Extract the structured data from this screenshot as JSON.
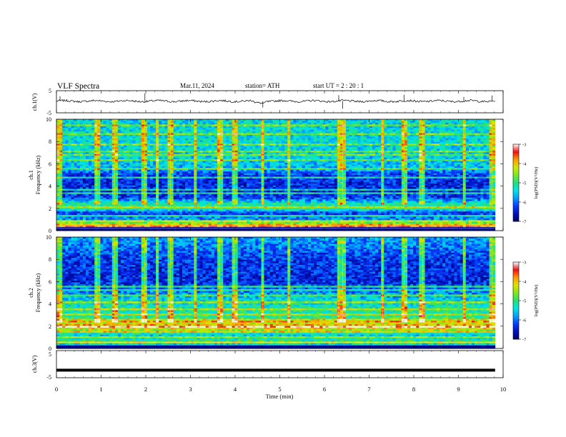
{
  "header": {
    "title": "VLF  Spectra",
    "date": "Mar.11, 2024",
    "station": "station= ATH",
    "start": "start  UT  =   2  : 20 : 1"
  },
  "colors": {
    "colormap": [
      "#000066",
      "#0011bb",
      "#0a3cff",
      "#00a0ff",
      "#00e5e5",
      "#22e07a",
      "#7fe81e",
      "#d8e600",
      "#ff9a00",
      "#ee1111",
      "#ffffff"
    ],
    "trace": "#000000"
  },
  "chart_data": [
    {
      "type": "line",
      "name": "ch1_waveform",
      "ylabel": "ch.1(V)",
      "ylim": [
        -5,
        5
      ],
      "yticks": [
        "5",
        "-5"
      ],
      "xlim": [
        0,
        10
      ],
      "y_baseline": 0.3,
      "spikes": [
        {
          "x": 0.08,
          "y": 2.5
        },
        {
          "x": 1.98,
          "y": 3.8
        },
        {
          "x": 4.62,
          "y": -2.6
        },
        {
          "x": 6.32,
          "y": 3.0
        },
        {
          "x": 6.41,
          "y": -3.2
        },
        {
          "x": 7.78,
          "y": 3.2
        },
        {
          "x": 9.12,
          "y": 2.2
        },
        {
          "x": 9.75,
          "y": 2.8
        }
      ]
    },
    {
      "type": "heatmap",
      "name": "ch1_spectrogram",
      "ylabel": "Frequency (kHz)",
      "channel_label": "ch.1",
      "xlim": [
        0,
        10
      ],
      "ylim": [
        0,
        10
      ],
      "yticks": [
        "0",
        "2",
        "4",
        "6",
        "8",
        "10"
      ],
      "data_extent_min": 9.82,
      "colorbar": {
        "label": "log(PSD)(V²/Hz)",
        "range": [
          -7,
          -3
        ],
        "ticks": [
          "-3",
          "-4",
          "-5",
          "-6",
          "-7"
        ]
      },
      "profile": [
        {
          "f": 0.0,
          "v": -7.0
        },
        {
          "f": 0.5,
          "v": -3.8
        },
        {
          "f": 1.0,
          "v": -5.8
        },
        {
          "f": 1.6,
          "v": -6.3
        },
        {
          "f": 2.0,
          "v": -4.9
        },
        {
          "f": 2.4,
          "v": -5.2
        },
        {
          "f": 3.0,
          "v": -6.3
        },
        {
          "f": 4.0,
          "v": -6.4
        },
        {
          "f": 5.0,
          "v": -6.3
        },
        {
          "f": 5.5,
          "v": -5.7
        },
        {
          "f": 6.5,
          "v": -5.5
        },
        {
          "f": 8.0,
          "v": -5.4
        },
        {
          "f": 10.0,
          "v": -5.5
        }
      ],
      "lines_khz": [
        0.2,
        0.45,
        0.85,
        1.35,
        2.05,
        3.35,
        3.65,
        4.75,
        5.6,
        6.4,
        6.75,
        7.1,
        7.8,
        8.6,
        9.5
      ],
      "bursts_min": [
        0.08,
        0.9,
        1.3,
        1.98,
        2.25,
        2.55,
        3.1,
        3.65,
        3.98,
        4.62,
        5.2,
        6.32,
        6.41,
        7.3,
        7.78,
        8.2,
        9.12,
        9.75
      ]
    },
    {
      "type": "heatmap",
      "name": "ch2_spectrogram",
      "ylabel": "Frequency (kHz)",
      "channel_label": "ch.2",
      "xlim": [
        0,
        10
      ],
      "ylim": [
        0,
        10
      ],
      "yticks": [
        "0",
        "2",
        "4",
        "6",
        "8",
        "10"
      ],
      "data_extent_min": 9.82,
      "colorbar": {
        "label": "log(PSD)(V²/Hz)",
        "range": [
          -7,
          -3
        ],
        "ticks": [
          "-3",
          "-4",
          "-5",
          "-6",
          "-7"
        ]
      },
      "profile": [
        {
          "f": 0.0,
          "v": -7.0
        },
        {
          "f": 0.5,
          "v": -5.0
        },
        {
          "f": 1.2,
          "v": -5.5
        },
        {
          "f": 2.0,
          "v": -3.7
        },
        {
          "f": 2.6,
          "v": -5.0
        },
        {
          "f": 3.5,
          "v": -5.2
        },
        {
          "f": 4.3,
          "v": -5.4
        },
        {
          "f": 5.0,
          "v": -5.9
        },
        {
          "f": 6.0,
          "v": -6.4
        },
        {
          "f": 8.0,
          "v": -6.3
        },
        {
          "f": 9.0,
          "v": -6.0
        },
        {
          "f": 10.0,
          "v": -5.8
        }
      ],
      "lines_khz": [
        0.3,
        0.55,
        1.0,
        1.45,
        2.0,
        2.5,
        3.0,
        3.5,
        4.2,
        4.8,
        5.3,
        5.6
      ],
      "bursts_min": [
        0.08,
        0.9,
        1.3,
        1.98,
        2.25,
        2.55,
        3.1,
        3.65,
        3.98,
        4.62,
        5.2,
        6.32,
        6.41,
        7.3,
        7.78,
        8.2,
        9.12,
        9.75
      ]
    },
    {
      "type": "line",
      "name": "ch3_waveform",
      "ylabel": "ch.3(V)",
      "ylim": [
        -5,
        5
      ],
      "yticks": [
        "5",
        "-5"
      ],
      "xlim": [
        0,
        10
      ],
      "y_baseline": -2.2
    }
  ],
  "x_axis": {
    "label": "Time  (min)",
    "range": [
      0,
      10
    ],
    "ticks": [
      "0",
      "1",
      "2",
      "3",
      "4",
      "5",
      "6",
      "7",
      "8",
      "9",
      "10"
    ]
  }
}
